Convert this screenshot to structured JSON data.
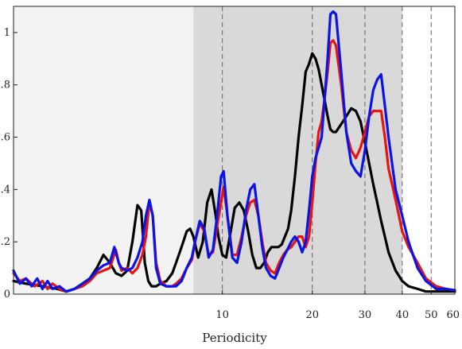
{
  "chart_data": {
    "type": "line",
    "xlabel": "Periodicity",
    "ylabel": "",
    "x_scale": "log",
    "xlim": [
      2,
      60
    ],
    "ylim": [
      0,
      1.1
    ],
    "x_ticks": [
      10,
      20,
      30,
      40,
      50,
      60
    ],
    "y_ticks": [
      0,
      0.2,
      0.4,
      0.6,
      0.8,
      1
    ],
    "y_tick_labels": [
      "0",
      "0.2",
      "0.4",
      "0.6",
      "0.8",
      "1"
    ],
    "vertical_dashed_lines": [
      10,
      20,
      30,
      40,
      50
    ],
    "shaded_regions": [
      {
        "x": [
          2,
          8
        ],
        "color": "#f3f3f3"
      },
      {
        "x": [
          8,
          40
        ],
        "color": "#d9d9d9"
      }
    ],
    "grid": false,
    "legend": "none",
    "series": [
      {
        "color": "#000000",
        "x": [
          2.0,
          2.2,
          2.5,
          2.8,
          3.0,
          3.2,
          3.4,
          3.6,
          3.8,
          4.0,
          4.2,
          4.4,
          4.6,
          4.8,
          5.0,
          5.2,
          5.35,
          5.5,
          5.65,
          5.8,
          6.0,
          6.2,
          6.5,
          6.8,
          7.0,
          7.3,
          7.6,
          7.8,
          8.0,
          8.3,
          8.6,
          8.9,
          9.2,
          9.5,
          9.7,
          10.0,
          10.3,
          10.7,
          11.0,
          11.4,
          11.8,
          12.2,
          12.6,
          13.0,
          13.4,
          13.8,
          14.2,
          14.6,
          15.0,
          15.4,
          15.8,
          16.2,
          16.6,
          17.0,
          17.5,
          18.0,
          18.5,
          19.0,
          19.5,
          20.0,
          20.5,
          21.0,
          21.5,
          22.0,
          22.5,
          23.0,
          23.5,
          24.0,
          25.0,
          26.0,
          27.0,
          28.0,
          29.0,
          30.0,
          31.0,
          32.0,
          33.0,
          34.0,
          35.0,
          36.0,
          38.0,
          40.0,
          42.0,
          45.0,
          48.0,
          52.0,
          56.0,
          60.0
        ],
        "values": [
          0.05,
          0.04,
          0.03,
          0.02,
          0.01,
          0.02,
          0.04,
          0.06,
          0.1,
          0.15,
          0.12,
          0.08,
          0.07,
          0.09,
          0.2,
          0.34,
          0.32,
          0.12,
          0.05,
          0.03,
          0.03,
          0.04,
          0.05,
          0.08,
          0.12,
          0.18,
          0.24,
          0.25,
          0.22,
          0.14,
          0.2,
          0.35,
          0.4,
          0.3,
          0.22,
          0.15,
          0.14,
          0.25,
          0.33,
          0.35,
          0.32,
          0.24,
          0.15,
          0.1,
          0.1,
          0.12,
          0.16,
          0.18,
          0.18,
          0.18,
          0.19,
          0.22,
          0.25,
          0.32,
          0.45,
          0.6,
          0.72,
          0.85,
          0.88,
          0.92,
          0.9,
          0.86,
          0.8,
          0.74,
          0.68,
          0.63,
          0.62,
          0.62,
          0.65,
          0.68,
          0.71,
          0.7,
          0.66,
          0.58,
          0.5,
          0.42,
          0.35,
          0.28,
          0.22,
          0.16,
          0.09,
          0.05,
          0.03,
          0.02,
          0.01,
          0.01,
          0.01,
          0.01
        ]
      },
      {
        "color": "#e8140f",
        "x": [
          2.0,
          2.1,
          2.2,
          2.35,
          2.5,
          2.6,
          2.7,
          2.85,
          3.0,
          3.2,
          3.4,
          3.6,
          3.8,
          4.0,
          4.2,
          4.4,
          4.5,
          4.6,
          4.8,
          5.0,
          5.2,
          5.4,
          5.55,
          5.7,
          5.85,
          6.0,
          6.2,
          6.5,
          6.8,
          7.0,
          7.3,
          7.6,
          7.9,
          8.1,
          8.4,
          8.7,
          9.0,
          9.3,
          9.6,
          9.9,
          10.1,
          10.4,
          10.8,
          11.2,
          11.6,
          12.0,
          12.4,
          12.8,
          13.2,
          13.6,
          14.0,
          14.5,
          15.0,
          15.5,
          16.0,
          16.5,
          17.0,
          17.5,
          18.0,
          18.5,
          19.0,
          19.5,
          20.0,
          20.5,
          21.0,
          21.5,
          22.0,
          22.5,
          23.0,
          23.5,
          24.0,
          25.0,
          26.0,
          27.0,
          28.0,
          29.0,
          30.0,
          31.0,
          32.0,
          33.0,
          34.0,
          35.0,
          36.0,
          38.0,
          40.0,
          42.0,
          45.0,
          48.0,
          52.0,
          56.0,
          60.0
        ],
        "values": [
          0.08,
          0.05,
          0.06,
          0.03,
          0.05,
          0.02,
          0.04,
          0.02,
          0.01,
          0.02,
          0.03,
          0.05,
          0.08,
          0.09,
          0.1,
          0.17,
          0.12,
          0.09,
          0.1,
          0.08,
          0.1,
          0.15,
          0.22,
          0.35,
          0.3,
          0.12,
          0.05,
          0.03,
          0.03,
          0.04,
          0.06,
          0.1,
          0.13,
          0.2,
          0.27,
          0.24,
          0.15,
          0.16,
          0.26,
          0.35,
          0.41,
          0.3,
          0.15,
          0.15,
          0.22,
          0.3,
          0.35,
          0.36,
          0.3,
          0.2,
          0.12,
          0.09,
          0.08,
          0.12,
          0.15,
          0.17,
          0.18,
          0.2,
          0.22,
          0.22,
          0.18,
          0.22,
          0.35,
          0.5,
          0.62,
          0.66,
          0.75,
          0.85,
          0.96,
          0.97,
          0.95,
          0.8,
          0.62,
          0.55,
          0.52,
          0.56,
          0.62,
          0.68,
          0.7,
          0.7,
          0.7,
          0.6,
          0.48,
          0.36,
          0.24,
          0.18,
          0.12,
          0.06,
          0.03,
          0.02,
          0.015
        ]
      },
      {
        "color": "#0a14e6",
        "x": [
          2.0,
          2.1,
          2.2,
          2.3,
          2.4,
          2.5,
          2.6,
          2.7,
          2.85,
          3.0,
          3.2,
          3.4,
          3.6,
          3.8,
          4.0,
          4.2,
          4.35,
          4.5,
          4.6,
          4.8,
          5.0,
          5.2,
          5.4,
          5.55,
          5.7,
          5.85,
          6.0,
          6.2,
          6.5,
          6.8,
          7.0,
          7.3,
          7.6,
          7.9,
          8.1,
          8.4,
          8.7,
          9.0,
          9.3,
          9.6,
          9.9,
          10.1,
          10.4,
          10.8,
          11.2,
          11.6,
          12.0,
          12.4,
          12.8,
          13.2,
          13.6,
          14.0,
          14.5,
          15.0,
          15.5,
          16.0,
          16.5,
          17.0,
          17.5,
          18.0,
          18.5,
          19.0,
          19.5,
          20.0,
          20.5,
          21.0,
          21.5,
          22.0,
          22.5,
          23.0,
          23.5,
          24.0,
          25.0,
          26.0,
          27.0,
          28.0,
          29.0,
          30.0,
          31.0,
          32.0,
          33.0,
          34.0,
          35.0,
          36.0,
          38.0,
          40.0,
          42.0,
          45.0,
          48.0,
          52.0,
          56.0,
          60.0
        ],
        "values": [
          0.09,
          0.04,
          0.06,
          0.03,
          0.06,
          0.02,
          0.05,
          0.02,
          0.03,
          0.01,
          0.02,
          0.04,
          0.06,
          0.09,
          0.11,
          0.12,
          0.18,
          0.12,
          0.1,
          0.09,
          0.1,
          0.14,
          0.2,
          0.3,
          0.36,
          0.3,
          0.1,
          0.04,
          0.03,
          0.03,
          0.03,
          0.05,
          0.1,
          0.14,
          0.2,
          0.28,
          0.25,
          0.14,
          0.17,
          0.3,
          0.45,
          0.47,
          0.3,
          0.14,
          0.12,
          0.2,
          0.32,
          0.4,
          0.42,
          0.3,
          0.18,
          0.1,
          0.07,
          0.06,
          0.1,
          0.14,
          0.17,
          0.2,
          0.22,
          0.2,
          0.16,
          0.2,
          0.32,
          0.45,
          0.52,
          0.56,
          0.6,
          0.75,
          0.9,
          1.07,
          1.08,
          1.07,
          0.85,
          0.62,
          0.5,
          0.47,
          0.45,
          0.55,
          0.68,
          0.78,
          0.82,
          0.84,
          0.72,
          0.6,
          0.4,
          0.3,
          0.2,
          0.1,
          0.05,
          0.02,
          0.02,
          0.015
        ]
      }
    ]
  }
}
